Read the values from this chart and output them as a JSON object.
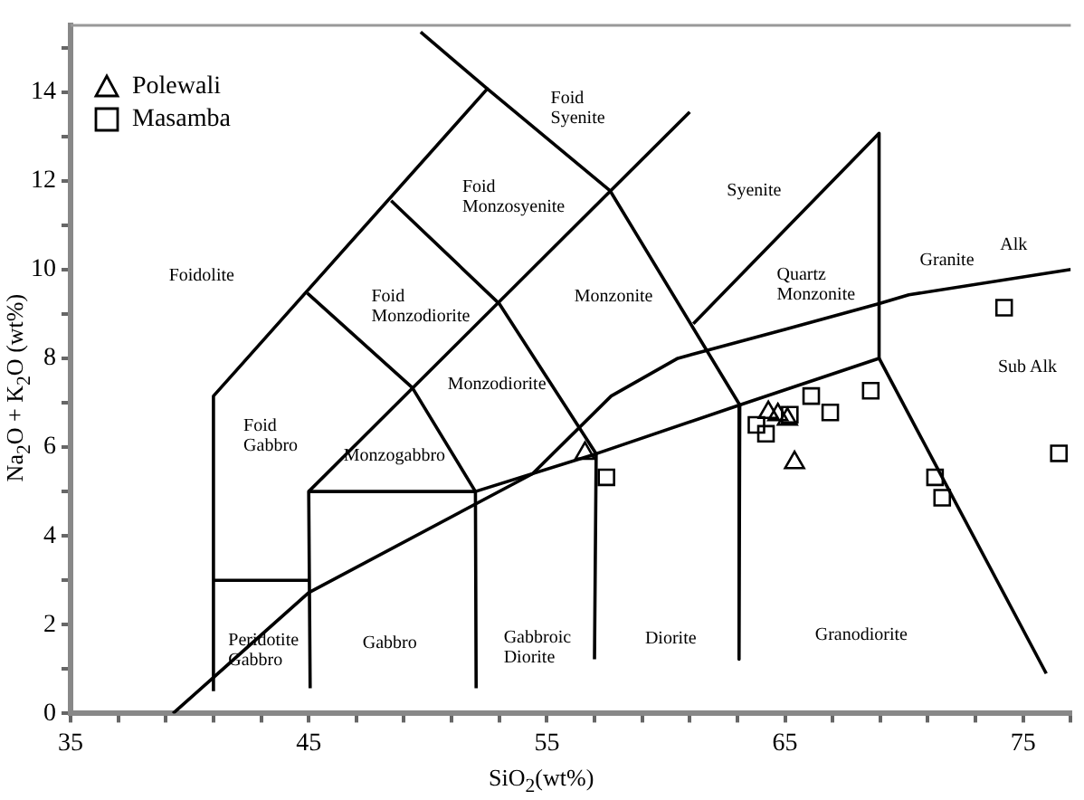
{
  "chart_data": {
    "type": "scatter",
    "xlabel": "SiO$_{2}$(wt%)",
    "ylabel": "Na$_{2}$O + K$_{2}$O (wt%)",
    "xlim": [
      35,
      77
    ],
    "ylim": [
      0,
      15.5
    ],
    "xticks": [
      35,
      {
        "value": 37,
        "label": null
      },
      {
        "value": 39,
        "label": null
      },
      {
        "value": 41,
        "label": null
      },
      {
        "value": 43,
        "label": null
      },
      45,
      {
        "value": 47,
        "label": null
      },
      {
        "value": 49,
        "label": null
      },
      {
        "value": 51,
        "label": null
      },
      {
        "value": 53,
        "label": null
      },
      55,
      {
        "value": 57,
        "label": null
      },
      {
        "value": 59,
        "label": null
      },
      {
        "value": 61,
        "label": null
      },
      {
        "value": 63,
        "label": null
      },
      65,
      {
        "value": 67,
        "label": null
      },
      {
        "value": 69,
        "label": null
      },
      {
        "value": 71,
        "label": null
      },
      {
        "value": 73,
        "label": null
      },
      75,
      {
        "value": 77,
        "label": null
      }
    ],
    "yticks": [
      0,
      {
        "value": 1,
        "label": null
      },
      2,
      {
        "value": 3,
        "label": null
      },
      4,
      {
        "value": 5,
        "label": null
      },
      6,
      {
        "value": 7,
        "label": null
      },
      8,
      {
        "value": 9,
        "label": null
      },
      10,
      {
        "value": 11,
        "label": null
      },
      12,
      {
        "value": 13,
        "label": null
      },
      14,
      {
        "value": 15,
        "label": null
      }
    ],
    "grid": false,
    "legend": "top left",
    "series": [
      {
        "name": "Polewali",
        "type": "scatter",
        "marker": "triangle",
        "color": "#000000",
        "x": [
          56.6,
          64.3,
          64.7,
          65.1,
          65.4
        ],
        "values": [
          5.86,
          6.78,
          6.73,
          6.63,
          5.65
        ]
      },
      {
        "name": "Masamba",
        "type": "scatter",
        "marker": "square",
        "color": "#000000",
        "x": [
          57.5,
          63.8,
          64.2,
          65.2,
          66.1,
          66.9,
          68.6,
          71.3,
          71.6,
          74.2,
          76.5
        ],
        "values": [
          5.32,
          6.5,
          6.3,
          6.73,
          7.15,
          6.78,
          7.27,
          5.32,
          4.86,
          9.14,
          5.86
        ]
      },
      {
        "type": "line",
        "marker": "none",
        "color": "#000000",
        "x": [
          41,
          41,
          52.5,
          57.66,
          63.1,
          63.07
        ],
        "values": [
          0.5,
          7.15,
          14.07,
          11.77,
          6.95,
          1.22
        ]
      },
      {
        "type": "line",
        "marker": "none",
        "color": "#000000",
        "x": [
          49.7,
          52.5
        ],
        "values": [
          15.35,
          14.07
        ]
      },
      {
        "type": "line",
        "marker": "none",
        "color": "#000000",
        "x": [
          48.46,
          53.0,
          57.07,
          57.0
        ],
        "values": [
          11.55,
          9.23,
          5.85,
          1.22
        ]
      },
      {
        "type": "line",
        "marker": "none",
        "color": "#000000",
        "x": [
          44.94,
          49.35,
          52,
          52.03
        ],
        "values": [
          9.47,
          7.34,
          5,
          0.57
        ]
      },
      {
        "type": "line",
        "marker": "none",
        "color": "#000000",
        "x": [
          45.06,
          45,
          52,
          57.07,
          63.1,
          68.95,
          68.95,
          61.15
        ],
        "values": [
          0.57,
          5,
          5,
          5.85,
          6.95,
          8,
          13.07,
          8.78
        ]
      },
      {
        "type": "line",
        "marker": "none",
        "color": "#000000",
        "x": [
          45,
          61
        ],
        "values": [
          5,
          13.55
        ]
      },
      {
        "type": "line",
        "marker": "none",
        "color": "#000000",
        "x": [
          41,
          45
        ],
        "values": [
          3,
          3
        ]
      },
      {
        "type": "line",
        "marker": "none",
        "color": "#000000",
        "x": [
          68.95,
          75.97
        ],
        "values": [
          8,
          0.9
        ]
      },
      {
        "type": "line",
        "marker": "none",
        "color": "#000000",
        "x": [
          39.3,
          45,
          54.4,
          57.7,
          60.5,
          65,
          68.95,
          70.2,
          77
        ],
        "values": [
          0,
          2.72,
          5.4,
          7.15,
          8,
          8.65,
          9.23,
          9.43,
          10
        ]
      }
    ],
    "annotations": [
      "Foidolite",
      "Foid\nGabbro",
      "Foid\nMonzodiorite",
      "Foid\nMonzosyenite",
      "Monzodiorite",
      "Monzogabbro",
      "Peridotite\nGabbro",
      "Gabbro",
      "Gabbroic\nDiorite",
      "Foid\nSyenite",
      "Monzonite",
      "Syenite",
      "Quartz\nMonzonite",
      "Granite",
      "Alk",
      "Sub Alk",
      "Diorite",
      "Granodiorite"
    ]
  }
}
